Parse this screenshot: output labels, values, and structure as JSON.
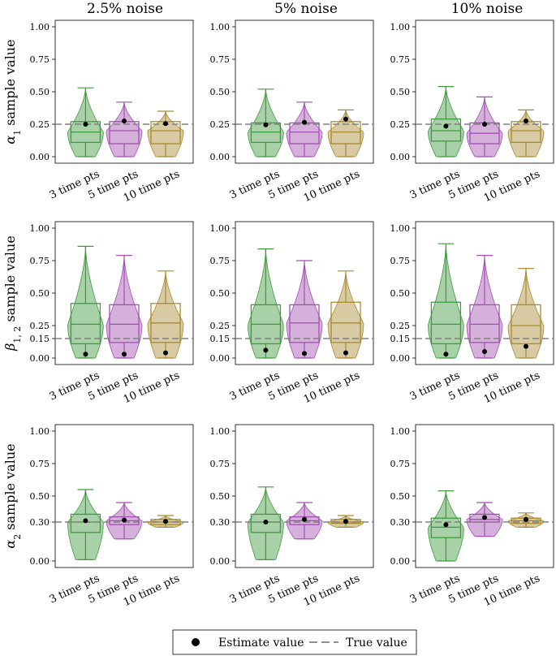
{
  "columns": [
    "2.5% noise",
    "5% noise",
    "10% noise"
  ],
  "row_labels": [
    "α₁ sample value",
    "β₁,₂ sample value",
    "α₂ sample value"
  ],
  "row_label_parts": [
    {
      "sym": "α",
      "sub": "1",
      "rest": " sample value"
    },
    {
      "sym": "β",
      "sub": "1, 2",
      "rest": " sample value"
    },
    {
      "sym": "α",
      "sub": "2",
      "rest": " sample value"
    }
  ],
  "categories": [
    "3 time pts",
    "5 time pts",
    "10 time pts"
  ],
  "colors": {
    "3 time pts": "#3f9a3f",
    "5 time pts": "#a150b0",
    "10 time pts": "#a88a30",
    "true_line": "#808080",
    "estimate": "#000000"
  },
  "legend": {
    "estimate": "Estimate value",
    "true": "True value"
  },
  "chart_data": {
    "type": "violin+box",
    "true_values": [
      0.25,
      0.15,
      0.3
    ],
    "yticks": [
      [
        "0.00",
        "0.25",
        "0.50",
        "0.75",
        "1.00"
      ],
      [
        "0.00",
        "0.15",
        "0.25",
        "0.50",
        "0.75",
        "1.00"
      ],
      [
        "0.00",
        "0.30",
        "0.50",
        "0.75",
        "1.00"
      ]
    ],
    "ylim": [
      -0.05,
      1.05
    ],
    "panels": [
      [
        [
          {
            "min": 0.0,
            "q1": 0.11,
            "med": 0.19,
            "q3": 0.27,
            "max": 0.53,
            "est": 0.25
          },
          {
            "min": 0.0,
            "q1": 0.1,
            "med": 0.2,
            "q3": 0.27,
            "max": 0.42,
            "est": 0.275
          },
          {
            "min": 0.0,
            "q1": 0.1,
            "med": 0.2,
            "q3": 0.27,
            "max": 0.35,
            "est": 0.255
          }
        ],
        [
          {
            "min": 0.0,
            "q1": 0.11,
            "med": 0.19,
            "q3": 0.26,
            "max": 0.52,
            "est": 0.245
          },
          {
            "min": 0.0,
            "q1": 0.1,
            "med": 0.19,
            "q3": 0.26,
            "max": 0.42,
            "est": 0.265
          },
          {
            "min": 0.0,
            "q1": 0.1,
            "med": 0.19,
            "q3": 0.27,
            "max": 0.36,
            "est": 0.29
          }
        ],
        [
          {
            "min": 0.0,
            "q1": 0.12,
            "med": 0.2,
            "q3": 0.29,
            "max": 0.54,
            "est": 0.235
          },
          {
            "min": 0.0,
            "q1": 0.1,
            "med": 0.18,
            "q3": 0.26,
            "max": 0.46,
            "est": 0.25
          },
          {
            "min": 0.0,
            "q1": 0.11,
            "med": 0.2,
            "q3": 0.27,
            "max": 0.36,
            "est": 0.275
          }
        ]
      ],
      [
        [
          {
            "min": 0.0,
            "q1": 0.11,
            "med": 0.26,
            "q3": 0.42,
            "max": 0.86,
            "est": 0.03
          },
          {
            "min": 0.0,
            "q1": 0.12,
            "med": 0.26,
            "q3": 0.41,
            "max": 0.79,
            "est": 0.03
          },
          {
            "min": 0.0,
            "q1": 0.12,
            "med": 0.27,
            "q3": 0.42,
            "max": 0.67,
            "est": 0.04
          }
        ],
        [
          {
            "min": 0.0,
            "q1": 0.11,
            "med": 0.26,
            "q3": 0.41,
            "max": 0.84,
            "est": 0.06
          },
          {
            "min": 0.0,
            "q1": 0.12,
            "med": 0.27,
            "q3": 0.41,
            "max": 0.75,
            "est": 0.035
          },
          {
            "min": 0.0,
            "q1": 0.12,
            "med": 0.27,
            "q3": 0.43,
            "max": 0.67,
            "est": 0.04
          }
        ],
        [
          {
            "min": 0.0,
            "q1": 0.11,
            "med": 0.26,
            "q3": 0.43,
            "max": 0.88,
            "est": 0.03
          },
          {
            "min": 0.0,
            "q1": 0.12,
            "med": 0.26,
            "q3": 0.41,
            "max": 0.79,
            "est": 0.05
          },
          {
            "min": 0.0,
            "q1": 0.11,
            "med": 0.25,
            "q3": 0.41,
            "max": 0.69,
            "est": 0.09
          }
        ]
      ],
      [
        [
          {
            "min": 0.01,
            "q1": 0.22,
            "med": 0.3,
            "q3": 0.36,
            "max": 0.55,
            "est": 0.31
          },
          {
            "min": 0.17,
            "q1": 0.28,
            "med": 0.31,
            "q3": 0.34,
            "max": 0.45,
            "est": 0.315
          },
          {
            "min": 0.26,
            "q1": 0.28,
            "med": 0.3,
            "q3": 0.32,
            "max": 0.35,
            "est": 0.305
          }
        ],
        [
          {
            "min": 0.01,
            "q1": 0.22,
            "med": 0.3,
            "q3": 0.36,
            "max": 0.57,
            "est": 0.3
          },
          {
            "min": 0.17,
            "q1": 0.28,
            "med": 0.31,
            "q3": 0.34,
            "max": 0.45,
            "est": 0.32
          },
          {
            "min": 0.26,
            "q1": 0.29,
            "med": 0.3,
            "q3": 0.32,
            "max": 0.35,
            "est": 0.305
          }
        ],
        [
          {
            "min": 0.0,
            "q1": 0.18,
            "med": 0.26,
            "q3": 0.33,
            "max": 0.54,
            "est": 0.28
          },
          {
            "min": 0.19,
            "q1": 0.3,
            "med": 0.32,
            "q3": 0.36,
            "max": 0.45,
            "est": 0.335
          },
          {
            "min": 0.26,
            "q1": 0.29,
            "med": 0.31,
            "q3": 0.33,
            "max": 0.37,
            "est": 0.32
          }
        ]
      ]
    ]
  }
}
